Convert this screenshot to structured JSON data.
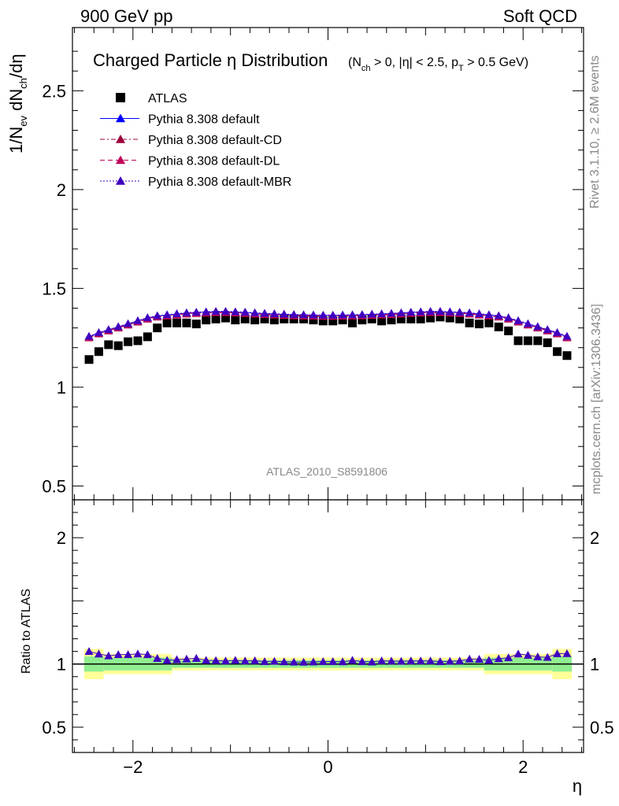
{
  "header": {
    "left_label": "900 GeV pp",
    "right_label": "Soft QCD"
  },
  "side_labels": {
    "rivet": "Rivet 3.1.10, ≥ 2.6M events",
    "mcplots": "mcplots.cern.ch [arXiv:1306.3436]"
  },
  "watermark": "ATLAS_2010_S8591806",
  "colors": {
    "atlas": "#000000",
    "default": "#0000ff",
    "cd": "#a0003c",
    "dl": "#c0005a",
    "mbr": "#4000c0",
    "band_inner": "#90ee90",
    "band_outer": "#ffff99"
  },
  "chart_data": [
    {
      "type": "scatter",
      "title_main": "Charged Particle η Distribution",
      "title_sub": "(N_ch > 0, |η| < 2.5, p_T > 0.5 GeV)",
      "ylabel": "1/N_ev dN_ch/dη",
      "ylim": [
        0.43,
        2.82
      ],
      "yticks": [
        0.5,
        1,
        1.5,
        2,
        2.5
      ],
      "ytick_labels": [
        "0.5",
        "1",
        "1.5",
        "2",
        "2.5"
      ],
      "xlim": [
        -2.62,
        2.62
      ],
      "legend_position": "top-left",
      "x": [
        -2.45,
        -2.35,
        -2.25,
        -2.15,
        -2.05,
        -1.95,
        -1.85,
        -1.75,
        -1.65,
        -1.55,
        -1.45,
        -1.35,
        -1.25,
        -1.15,
        -1.05,
        -0.95,
        -0.85,
        -0.75,
        -0.65,
        -0.55,
        -0.45,
        -0.35,
        -0.25,
        -0.15,
        -0.05,
        0.05,
        0.15,
        0.25,
        0.35,
        0.45,
        0.55,
        0.65,
        0.75,
        0.85,
        0.95,
        1.05,
        1.15,
        1.25,
        1.35,
        1.45,
        1.55,
        1.65,
        1.75,
        1.85,
        1.95,
        2.05,
        2.15,
        2.25,
        2.35,
        2.45
      ],
      "series": [
        {
          "name": "ATLAS",
          "marker": "square",
          "color": "#000000",
          "values": [
            1.14,
            1.18,
            1.215,
            1.21,
            1.23,
            1.235,
            1.255,
            1.3,
            1.325,
            1.325,
            1.325,
            1.32,
            1.34,
            1.345,
            1.35,
            1.34,
            1.345,
            1.34,
            1.345,
            1.34,
            1.345,
            1.345,
            1.345,
            1.34,
            1.335,
            1.335,
            1.34,
            1.325,
            1.34,
            1.345,
            1.335,
            1.34,
            1.345,
            1.345,
            1.345,
            1.35,
            1.355,
            1.35,
            1.345,
            1.325,
            1.32,
            1.325,
            1.305,
            1.285,
            1.235,
            1.235,
            1.235,
            1.225,
            1.18,
            1.16
          ]
        },
        {
          "name": "Pythia 8.308 default",
          "marker": "triangle",
          "line": "solid",
          "color": "#0000ff",
          "values": [
            1.255,
            1.275,
            1.29,
            1.305,
            1.32,
            1.335,
            1.35,
            1.36,
            1.365,
            1.37,
            1.375,
            1.378,
            1.38,
            1.382,
            1.382,
            1.38,
            1.378,
            1.375,
            1.372,
            1.37,
            1.368,
            1.366,
            1.365,
            1.364,
            1.363,
            1.363,
            1.364,
            1.365,
            1.366,
            1.368,
            1.37,
            1.372,
            1.375,
            1.378,
            1.38,
            1.382,
            1.382,
            1.38,
            1.378,
            1.375,
            1.37,
            1.365,
            1.36,
            1.35,
            1.335,
            1.32,
            1.305,
            1.29,
            1.275,
            1.255
          ]
        },
        {
          "name": "Pythia 8.308 default-CD",
          "marker": "triangle",
          "line": "dashdot",
          "color": "#a0003c",
          "values": [
            1.25,
            1.27,
            1.285,
            1.3,
            1.315,
            1.33,
            1.345,
            1.355,
            1.36,
            1.365,
            1.37,
            1.373,
            1.375,
            1.377,
            1.377,
            1.375,
            1.373,
            1.37,
            1.367,
            1.365,
            1.363,
            1.361,
            1.36,
            1.359,
            1.358,
            1.358,
            1.359,
            1.36,
            1.361,
            1.363,
            1.365,
            1.367,
            1.37,
            1.373,
            1.375,
            1.377,
            1.377,
            1.375,
            1.373,
            1.37,
            1.365,
            1.36,
            1.355,
            1.345,
            1.33,
            1.315,
            1.3,
            1.285,
            1.27,
            1.25
          ]
        },
        {
          "name": "Pythia 8.308 default-DL",
          "marker": "triangle",
          "line": "dashed",
          "color": "#c0005a",
          "values": [
            1.252,
            1.272,
            1.287,
            1.302,
            1.317,
            1.332,
            1.347,
            1.357,
            1.362,
            1.367,
            1.372,
            1.375,
            1.377,
            1.379,
            1.379,
            1.377,
            1.375,
            1.372,
            1.369,
            1.367,
            1.365,
            1.363,
            1.362,
            1.361,
            1.36,
            1.36,
            1.361,
            1.362,
            1.363,
            1.365,
            1.367,
            1.369,
            1.372,
            1.375,
            1.377,
            1.379,
            1.379,
            1.377,
            1.375,
            1.372,
            1.367,
            1.362,
            1.357,
            1.347,
            1.332,
            1.317,
            1.302,
            1.287,
            1.272,
            1.252
          ]
        },
        {
          "name": "Pythia 8.308 default-MBR",
          "marker": "triangle",
          "line": "dotted",
          "color": "#4000c0",
          "values": [
            1.258,
            1.277,
            1.292,
            1.307,
            1.322,
            1.337,
            1.352,
            1.362,
            1.367,
            1.372,
            1.377,
            1.38,
            1.382,
            1.384,
            1.384,
            1.382,
            1.38,
            1.377,
            1.374,
            1.372,
            1.37,
            1.368,
            1.367,
            1.366,
            1.365,
            1.365,
            1.366,
            1.367,
            1.368,
            1.37,
            1.372,
            1.374,
            1.377,
            1.38,
            1.382,
            1.384,
            1.384,
            1.382,
            1.38,
            1.377,
            1.372,
            1.367,
            1.362,
            1.352,
            1.337,
            1.322,
            1.307,
            1.292,
            1.277,
            1.258
          ]
        }
      ]
    },
    {
      "type": "scatter",
      "ylabel": "Ratio to ATLAS",
      "xlabel": "η",
      "ylim": [
        0.3,
        2.3
      ],
      "yticks": [
        0.5,
        1,
        2
      ],
      "ytick_labels": [
        "0.5",
        "1",
        "2"
      ],
      "xlim": [
        -2.62,
        2.62
      ],
      "xticks": [
        -2,
        0,
        2
      ],
      "xtick_labels": [
        "−2",
        "0",
        "2"
      ],
      "bands": [
        {
          "x_from": -2.5,
          "x_to": -2.3,
          "inner": [
            0.94,
            1.06
          ],
          "outer": [
            0.88,
            1.12
          ]
        },
        {
          "x_from": -2.3,
          "x_to": -1.6,
          "inner": [
            0.95,
            1.05
          ],
          "outer": [
            0.92,
            1.08
          ]
        },
        {
          "x_from": -1.6,
          "x_to": 1.6,
          "inner": [
            0.97,
            1.03
          ],
          "outer": [
            0.95,
            1.05
          ]
        },
        {
          "x_from": 1.6,
          "x_to": 2.3,
          "inner": [
            0.95,
            1.05
          ],
          "outer": [
            0.92,
            1.08
          ]
        },
        {
          "x_from": 2.3,
          "x_to": 2.5,
          "inner": [
            0.94,
            1.06
          ],
          "outer": [
            0.88,
            1.12
          ]
        }
      ],
      "ratio_values": [
        1.1,
        1.08,
        1.065,
        1.075,
        1.075,
        1.08,
        1.075,
        1.045,
        1.03,
        1.035,
        1.04,
        1.045,
        1.03,
        1.028,
        1.025,
        1.03,
        1.025,
        1.027,
        1.02,
        1.022,
        1.018,
        1.016,
        1.015,
        1.017,
        1.02,
        1.02,
        1.018,
        1.03,
        1.02,
        1.017,
        1.026,
        1.024,
        1.022,
        1.025,
        1.025,
        1.025,
        1.02,
        1.022,
        1.025,
        1.04,
        1.038,
        1.03,
        1.042,
        1.05,
        1.08,
        1.07,
        1.057,
        1.053,
        1.082,
        1.083
      ]
    }
  ]
}
